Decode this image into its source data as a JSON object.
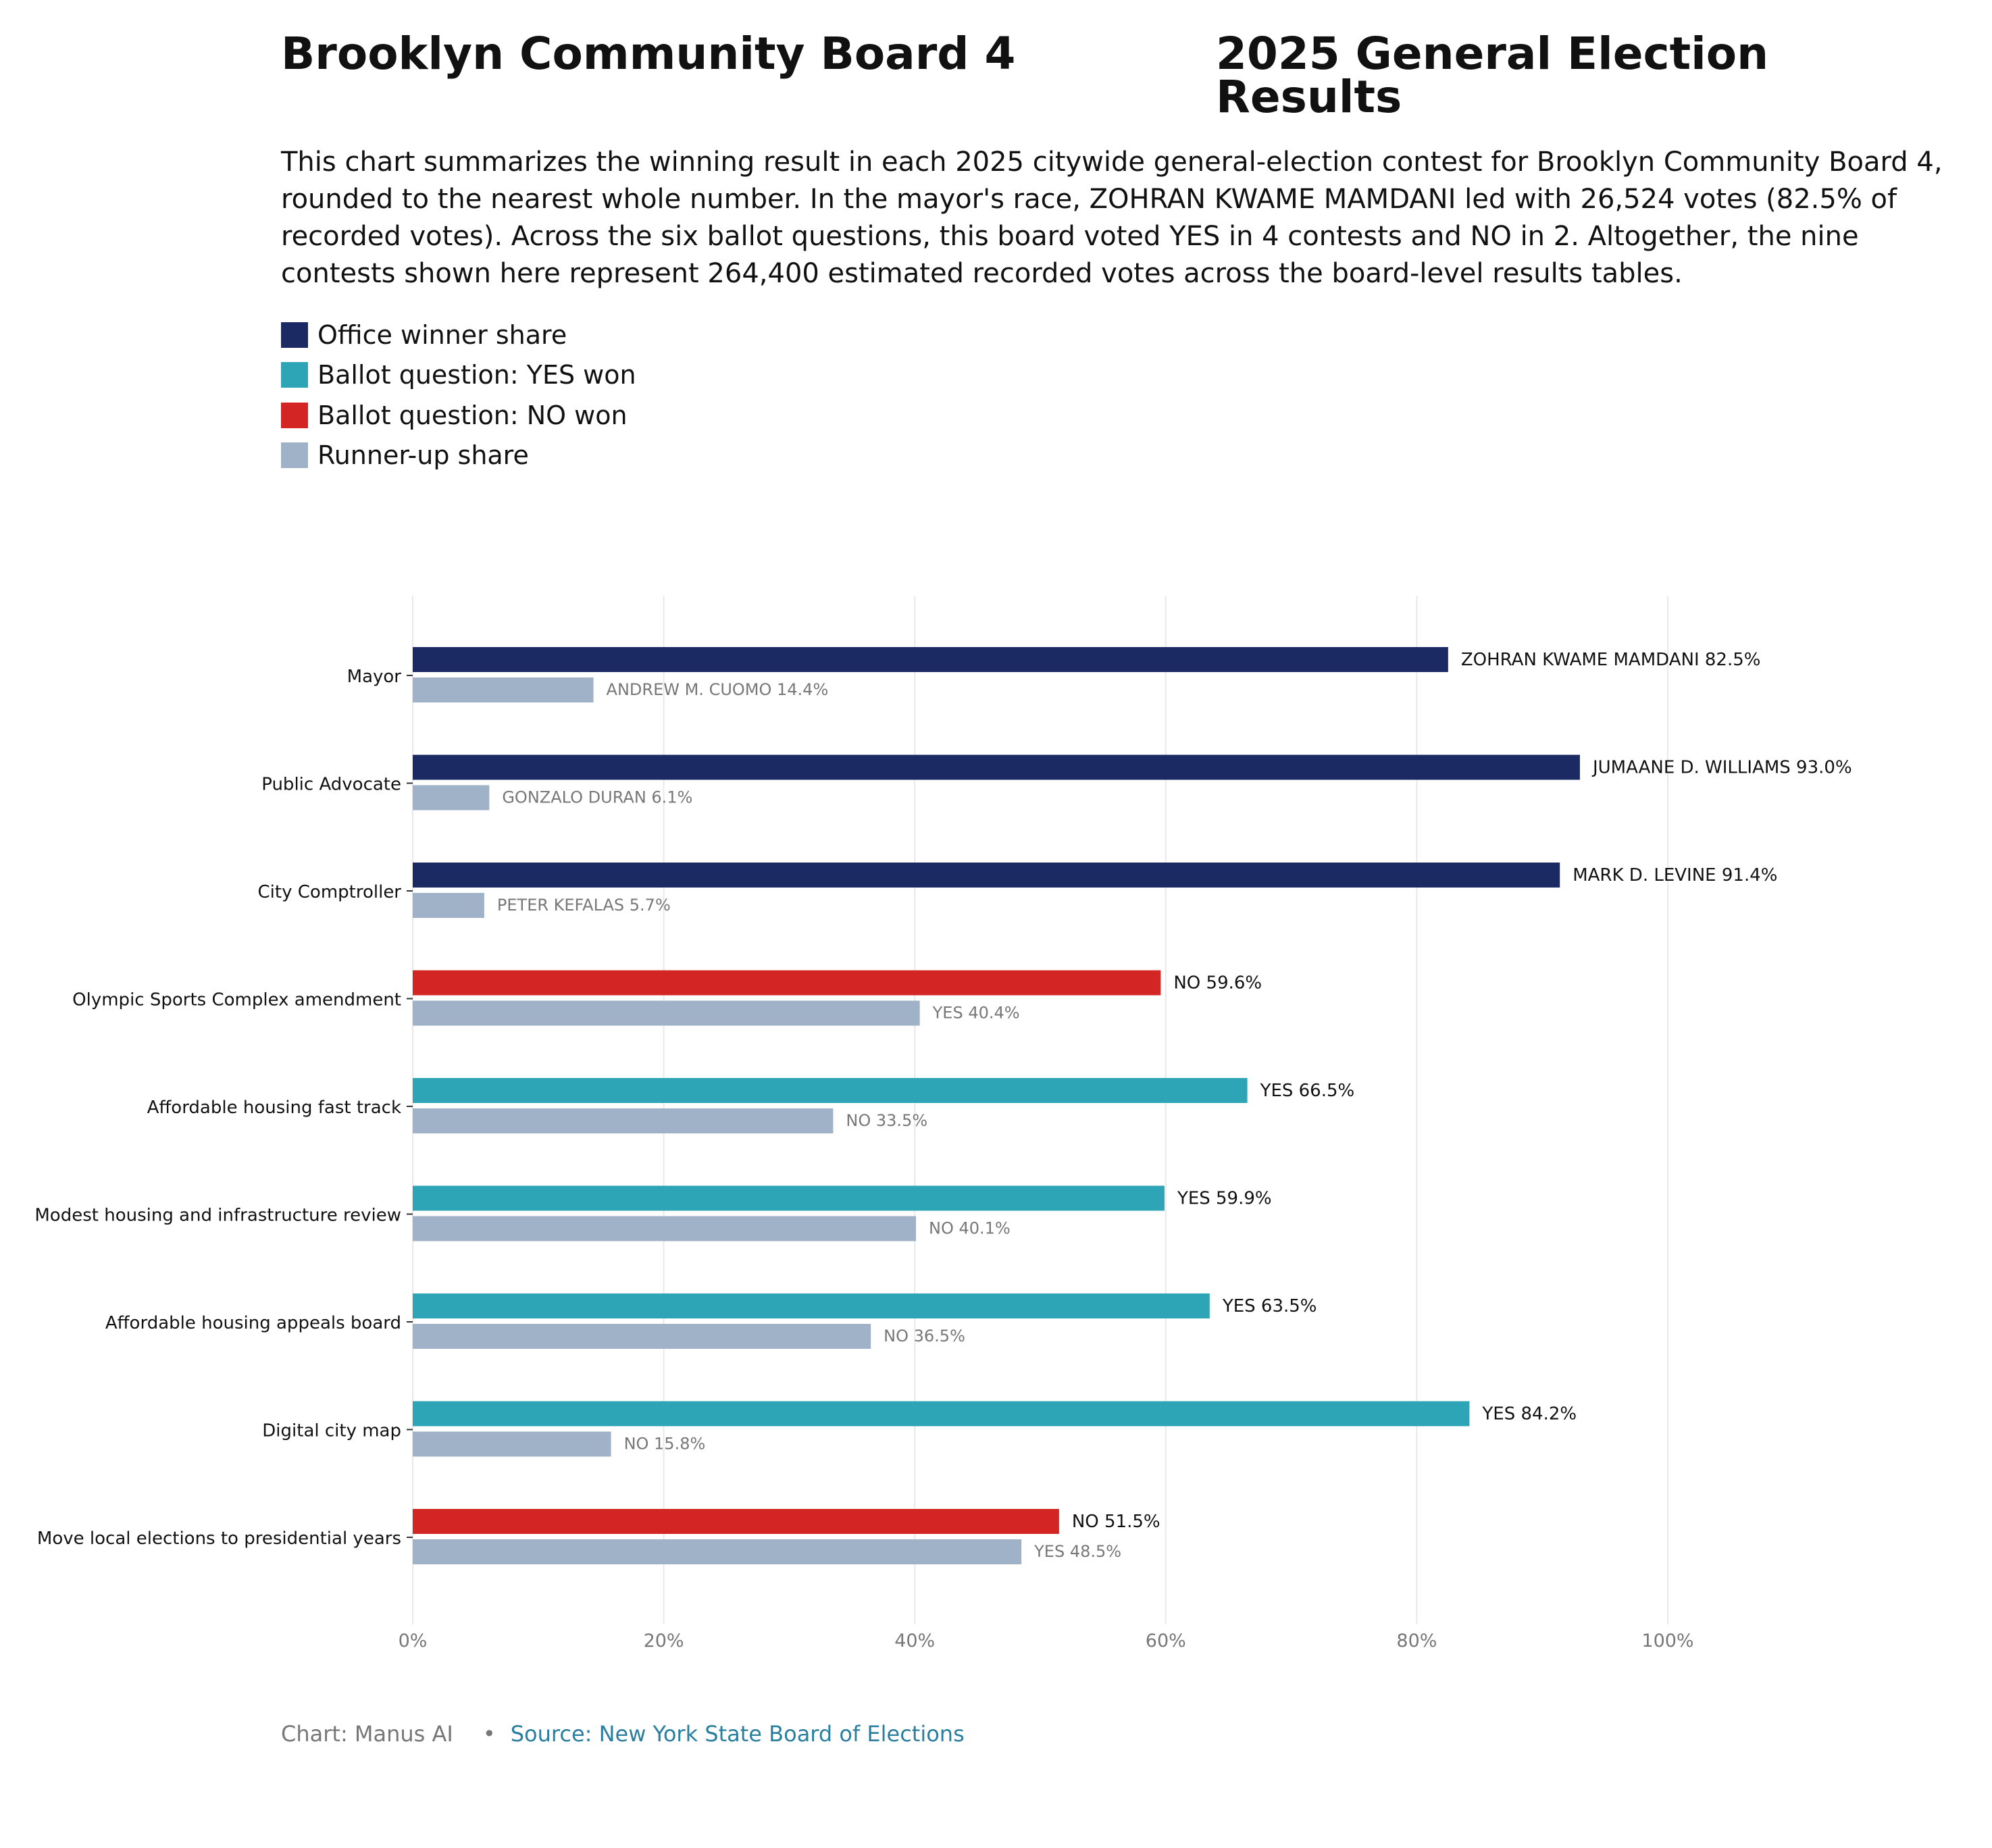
{
  "header": {
    "title_left": "Brooklyn Community Board 4",
    "title_right": "2025 General Election Results",
    "description": "This chart summarizes the winning result in each 2025 citywide general-election contest for Brooklyn Community Board 4, rounded to the nearest whole number. In the mayor's race, ZOHRAN KWAME MAMDANI led with 26,524 votes (82.5% of recorded votes). Across the six ballot questions, this board voted YES in 4 contests and NO in 2. Altogether, the nine contests shown here represent 264,400 estimated recorded votes across the board-level results tables."
  },
  "legend": [
    {
      "label": "Office winner share",
      "color": "#1b2a63"
    },
    {
      "label": "Ballot question: YES won",
      "color": "#2ea5b6"
    },
    {
      "label": "Ballot question: NO won",
      "color": "#d42525"
    },
    {
      "label": "Runner-up share",
      "color": "#a0b2c8"
    }
  ],
  "colors": {
    "office": "#1b2a63",
    "yes": "#2ea5b6",
    "no": "#d42525",
    "runner": "#a0b2c8",
    "grid": "#e9e9e9",
    "label_dark": "#111111",
    "label_muted": "#777777"
  },
  "chart_data": {
    "type": "bar",
    "orientation": "horizontal",
    "xlim": [
      0,
      100
    ],
    "x_ticks": [
      "0%",
      "20%",
      "40%",
      "60%",
      "80%",
      "100%"
    ],
    "x_tick_values": [
      0,
      20,
      40,
      60,
      80,
      100
    ],
    "grid": true,
    "categories": [
      "Mayor",
      "Public Advocate",
      "City Comptroller",
      "Olympic Sports Complex amendment",
      "Affordable housing fast track",
      "Modest housing and infrastructure review",
      "Affordable housing appeals board",
      "Digital city map",
      "Move local elections to presidential years"
    ],
    "winners": [
      {
        "value": 82.5,
        "label": "ZOHRAN KWAME MAMDANI 82.5%",
        "kind": "office"
      },
      {
        "value": 93.0,
        "label": "JUMAANE D. WILLIAMS 93.0%",
        "kind": "office"
      },
      {
        "value": 91.4,
        "label": "MARK D. LEVINE 91.4%",
        "kind": "office"
      },
      {
        "value": 59.6,
        "label": "NO 59.6%",
        "kind": "no"
      },
      {
        "value": 66.5,
        "label": "YES 66.5%",
        "kind": "yes"
      },
      {
        "value": 59.9,
        "label": "YES 59.9%",
        "kind": "yes"
      },
      {
        "value": 63.5,
        "label": "YES 63.5%",
        "kind": "yes"
      },
      {
        "value": 84.2,
        "label": "YES 84.2%",
        "kind": "yes"
      },
      {
        "value": 51.5,
        "label": "NO 51.5%",
        "kind": "no"
      }
    ],
    "runners_up": [
      {
        "value": 14.4,
        "label": "ANDREW M. CUOMO 14.4%"
      },
      {
        "value": 6.1,
        "label": "GONZALO DURAN 6.1%"
      },
      {
        "value": 5.7,
        "label": "PETER KEFALAS 5.7%"
      },
      {
        "value": 40.4,
        "label": "YES 40.4%"
      },
      {
        "value": 33.5,
        "label": "NO 33.5%"
      },
      {
        "value": 40.1,
        "label": "NO 40.1%"
      },
      {
        "value": 36.5,
        "label": "NO 36.5%"
      },
      {
        "value": 15.8,
        "label": "NO 15.8%"
      },
      {
        "value": 48.5,
        "label": "YES 48.5%"
      }
    ]
  },
  "footer": {
    "credit": "Chart: Manus AI",
    "separator": "•",
    "source": "Source: New York State Board of Elections"
  }
}
